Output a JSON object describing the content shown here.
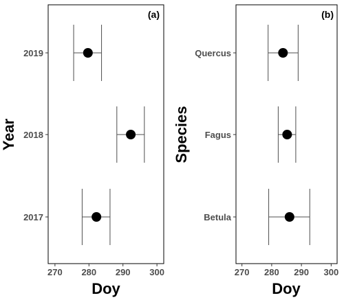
{
  "chart_data": [
    {
      "type": "scatter",
      "panel_label": "(a)",
      "xlabel": "Doy",
      "ylabel": "Year",
      "xlim": [
        268,
        302
      ],
      "xticks": [
        270,
        280,
        290,
        300
      ],
      "categories": [
        "2017",
        "2018",
        "2019"
      ],
      "points": [
        {
          "category": "2017",
          "mean": 282.2,
          "low": 278.0,
          "high": 286.2
        },
        {
          "category": "2018",
          "mean": 292.3,
          "low": 288.2,
          "high": 296.3
        },
        {
          "category": "2019",
          "mean": 279.7,
          "low": 275.5,
          "high": 283.7
        }
      ],
      "grid": false,
      "legend": "none"
    },
    {
      "type": "scatter",
      "panel_label": "(b)",
      "xlabel": "Doy",
      "ylabel": "Species",
      "xlim": [
        268,
        302
      ],
      "xticks": [
        270,
        280,
        290,
        300
      ],
      "categories": [
        "Betula",
        "Fagus",
        "Quercus"
      ],
      "points": [
        {
          "category": "Betula",
          "mean": 286.0,
          "low": 279.0,
          "high": 292.8
        },
        {
          "category": "Fagus",
          "mean": 285.2,
          "low": 282.2,
          "high": 288.1
        },
        {
          "category": "Quercus",
          "mean": 283.8,
          "low": 278.8,
          "high": 288.9
        }
      ],
      "grid": false,
      "legend": "none"
    }
  ],
  "style": {
    "point_color": "#000000",
    "errorbar_color": "#4d4d4d",
    "panel_border_color": "#000000",
    "tick_label_color": "#4d4d4d"
  }
}
